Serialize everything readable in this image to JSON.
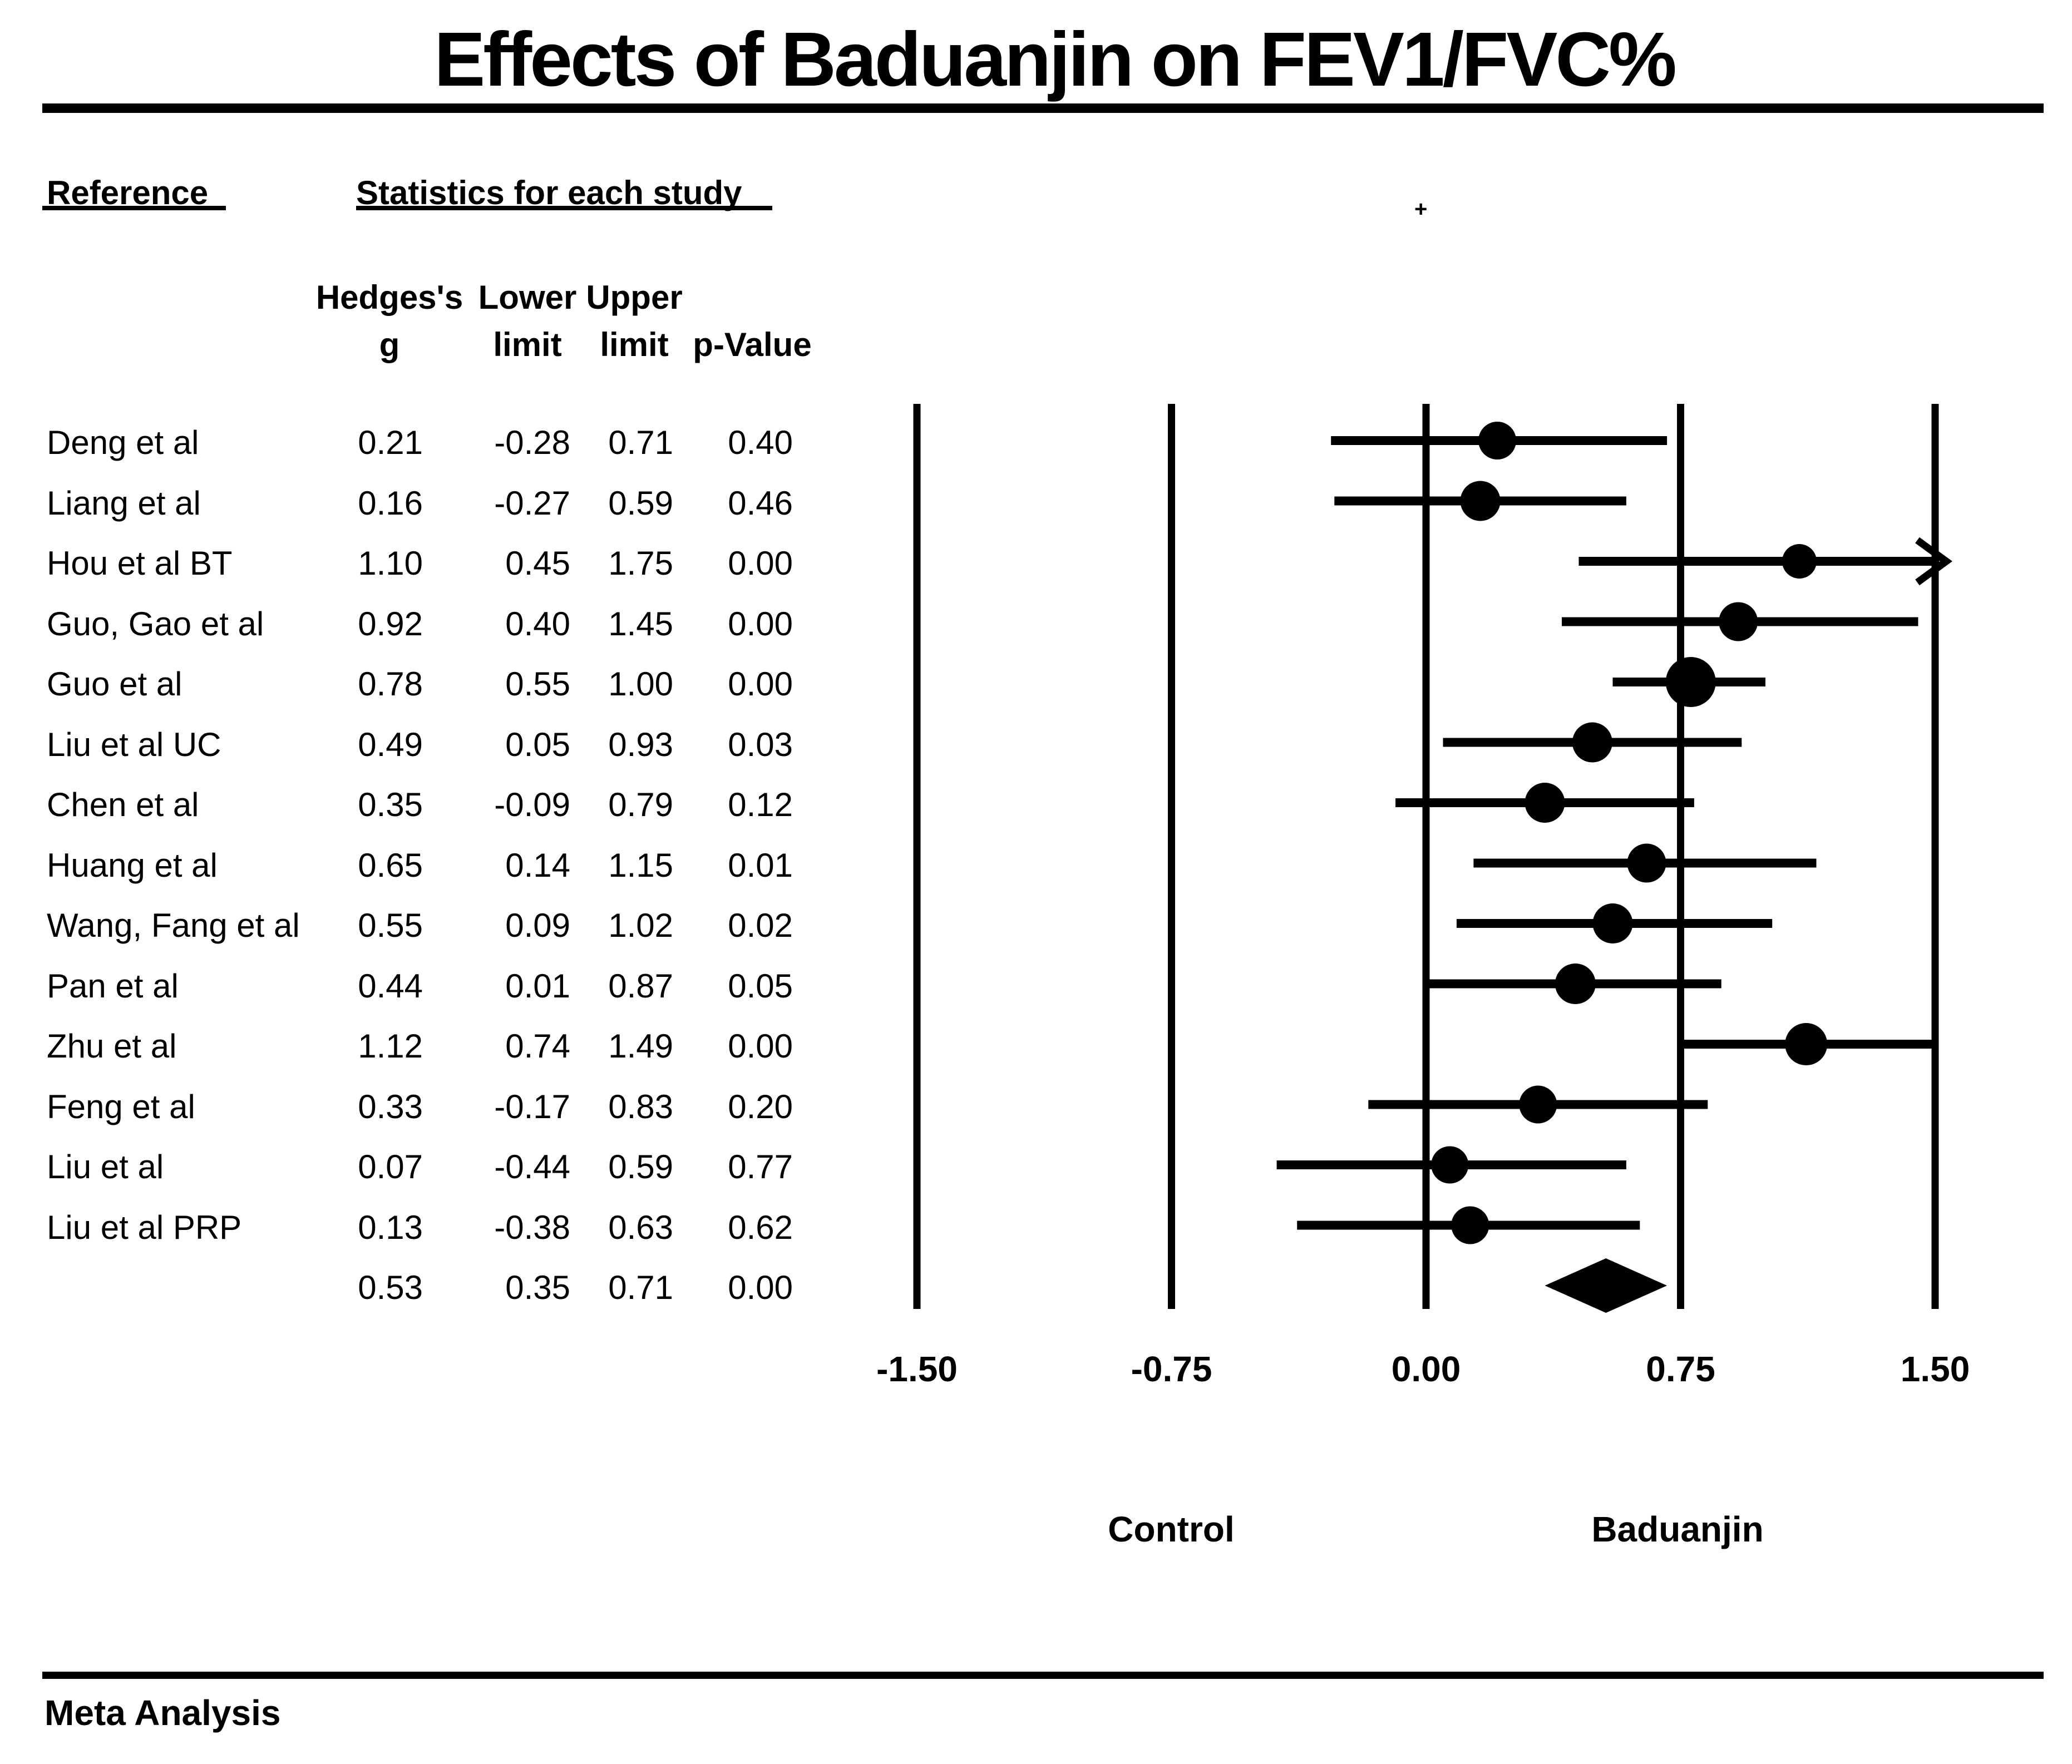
{
  "chart_data": {
    "type": "forest",
    "title": "Effects of Baduanjin on FEV1/FVC%",
    "column_group_headers": {
      "reference": "Reference",
      "statistics": "Statistics for each study"
    },
    "stat_columns": [
      {
        "line1": "Hedges's",
        "line2": "g"
      },
      {
        "line1": "Lower",
        "line2": "limit"
      },
      {
        "line1": "Upper",
        "line2": "limit"
      },
      {
        "line1": "",
        "line2": "p-Value"
      }
    ],
    "studies": [
      {
        "name": "Deng et al",
        "g": 0.21,
        "lower": -0.28,
        "upper": 0.71,
        "p": 0.4,
        "marker_px": 68
      },
      {
        "name": "Liang et al",
        "g": 0.16,
        "lower": -0.27,
        "upper": 0.59,
        "p": 0.46,
        "marker_px": 72
      },
      {
        "name": "Hou et al BT",
        "g": 1.1,
        "lower": 0.45,
        "upper": 1.75,
        "p": 0.0,
        "marker_px": 62
      },
      {
        "name": "Guo, Gao et al",
        "g": 0.92,
        "lower": 0.4,
        "upper": 1.45,
        "p": 0.0,
        "marker_px": 70
      },
      {
        "name": "Guo et al",
        "g": 0.78,
        "lower": 0.55,
        "upper": 1.0,
        "p": 0.0,
        "marker_px": 90
      },
      {
        "name": "Liu et al UC",
        "g": 0.49,
        "lower": 0.05,
        "upper": 0.93,
        "p": 0.03,
        "marker_px": 72
      },
      {
        "name": "Chen et al",
        "g": 0.35,
        "lower": -0.09,
        "upper": 0.79,
        "p": 0.12,
        "marker_px": 72
      },
      {
        "name": "Huang et al",
        "g": 0.65,
        "lower": 0.14,
        "upper": 1.15,
        "p": 0.01,
        "marker_px": 70
      },
      {
        "name": "Wang, Fang et al",
        "g": 0.55,
        "lower": 0.09,
        "upper": 1.02,
        "p": 0.02,
        "marker_px": 72
      },
      {
        "name": "Pan et al",
        "g": 0.44,
        "lower": 0.01,
        "upper": 0.87,
        "p": 0.05,
        "marker_px": 73
      },
      {
        "name": "Zhu et al",
        "g": 1.12,
        "lower": 0.74,
        "upper": 1.49,
        "p": 0.0,
        "marker_px": 76
      },
      {
        "name": "Feng et al",
        "g": 0.33,
        "lower": -0.17,
        "upper": 0.83,
        "p": 0.2,
        "marker_px": 68
      },
      {
        "name": "Liu et al",
        "g": 0.07,
        "lower": -0.44,
        "upper": 0.59,
        "p": 0.77,
        "marker_px": 67
      },
      {
        "name": "Liu et al PRP",
        "g": 0.13,
        "lower": -0.38,
        "upper": 0.63,
        "p": 0.62,
        "marker_px": 68
      }
    ],
    "summary": {
      "name": "",
      "g": 0.53,
      "lower": 0.35,
      "upper": 0.71,
      "p": 0.0
    },
    "axis": {
      "min": -1.5,
      "max": 1.5,
      "ticks": [
        -1.5,
        -0.75,
        0,
        0.75,
        1.5
      ],
      "tick_labels": [
        "-1.50",
        "-0.75",
        "0.00",
        "0.75",
        "1.50"
      ]
    },
    "group_labels": {
      "left": "Control",
      "right": "Baduanjin"
    },
    "footer": "Meta Analysis",
    "colors": {
      "foreground": "#000000",
      "background": "#ffffff"
    }
  }
}
